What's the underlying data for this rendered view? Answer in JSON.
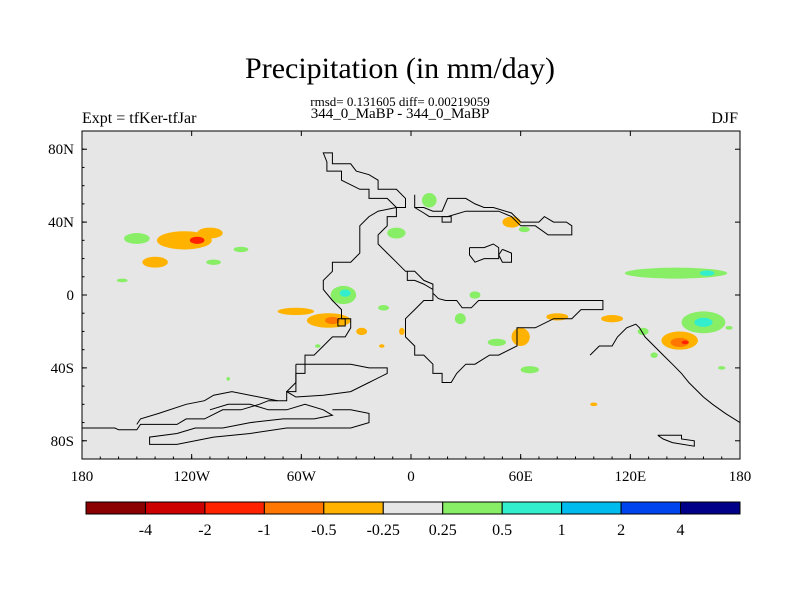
{
  "figure": {
    "title": "Precipitation (in mm/day)",
    "stats_line": "rmsd= 0.131605 diff= 0.00219059",
    "subtitle": "344_0_MaBP - 344_0_MaBP",
    "left_label": "Expt = tfKer-tfJar",
    "right_label": "DJF"
  },
  "chart_data": {
    "type": "heatmap",
    "title": "Precipitation (in mm/day)",
    "xlabel": "",
    "ylabel": "",
    "xlim": [
      -180,
      180
    ],
    "ylim": [
      -90,
      90
    ],
    "x_ticks": [
      {
        "value": -180,
        "label": "180"
      },
      {
        "value": -120,
        "label": "120W"
      },
      {
        "value": -60,
        "label": "60W"
      },
      {
        "value": 0,
        "label": "0"
      },
      {
        "value": 60,
        "label": "60E"
      },
      {
        "value": 120,
        "label": "120E"
      },
      {
        "value": 180,
        "label": "180"
      }
    ],
    "y_ticks": [
      {
        "value": 80,
        "label": "80N"
      },
      {
        "value": 40,
        "label": "40N"
      },
      {
        "value": 0,
        "label": "0"
      },
      {
        "value": -40,
        "label": "40S"
      },
      {
        "value": -80,
        "label": "80S"
      }
    ],
    "background_color": "#e6e6e6",
    "colorbar": {
      "levels": [
        "-4",
        "-2",
        "-1",
        "-0.5",
        "-0.25",
        "0.25",
        "0.5",
        "1",
        "2",
        "4"
      ],
      "colors": [
        "#8b0000",
        "#cc0000",
        "#ff2200",
        "#ff7700",
        "#ffb300",
        "#e6e6e6",
        "#88ee66",
        "#33eecc",
        "#00bbee",
        "#0044ee",
        "#000088"
      ]
    },
    "anomaly_regions": [
      {
        "lon": -150,
        "lat": 31,
        "rx": 7,
        "ry": 3,
        "color": "#88ee66"
      },
      {
        "lon": -124,
        "lat": 30,
        "rx": 15,
        "ry": 5,
        "color": "#ffb300"
      },
      {
        "lon": -110,
        "lat": 34,
        "rx": 7,
        "ry": 3,
        "color": "#ffb300"
      },
      {
        "lon": -117,
        "lat": 30,
        "rx": 4,
        "ry": 2,
        "color": "#ff2200"
      },
      {
        "lon": -140,
        "lat": 18,
        "rx": 7,
        "ry": 3,
        "color": "#ffb300"
      },
      {
        "lon": -108,
        "lat": 18,
        "rx": 4,
        "ry": 1.5,
        "color": "#88ee66"
      },
      {
        "lon": -158,
        "lat": 8,
        "rx": 3,
        "ry": 1,
        "color": "#88ee66"
      },
      {
        "lon": -93,
        "lat": 25,
        "rx": 4,
        "ry": 1.5,
        "color": "#88ee66"
      },
      {
        "lon": -37,
        "lat": 0,
        "rx": 7,
        "ry": 5,
        "color": "#88ee66"
      },
      {
        "lon": -36,
        "lat": 1,
        "rx": 3,
        "ry": 2,
        "color": "#33eecc"
      },
      {
        "lon": -63,
        "lat": -9,
        "rx": 10,
        "ry": 2,
        "color": "#ffb300"
      },
      {
        "lon": -45,
        "lat": -14,
        "rx": 12,
        "ry": 4,
        "color": "#ffb300"
      },
      {
        "lon": -43,
        "lat": -14,
        "rx": 4,
        "ry": 2,
        "color": "#ff7700"
      },
      {
        "lon": -27,
        "lat": -20,
        "rx": 3,
        "ry": 2,
        "color": "#ffb300"
      },
      {
        "lon": -15,
        "lat": -7,
        "rx": 3,
        "ry": 1.5,
        "color": "#88ee66"
      },
      {
        "lon": -5,
        "lat": -20,
        "rx": 1.5,
        "ry": 2,
        "color": "#ffb300"
      },
      {
        "lon": -16,
        "lat": -28,
        "rx": 1.5,
        "ry": 1,
        "color": "#ffb300"
      },
      {
        "lon": -51,
        "lat": -28,
        "rx": 1.5,
        "ry": 1,
        "color": "#88ee66"
      },
      {
        "lon": -100,
        "lat": -46,
        "rx": 1,
        "ry": 1,
        "color": "#88ee66"
      },
      {
        "lon": 10,
        "lat": 52,
        "rx": 4,
        "ry": 4,
        "color": "#88ee66"
      },
      {
        "lon": -8,
        "lat": 34,
        "rx": 5,
        "ry": 3,
        "color": "#88ee66"
      },
      {
        "lon": 55,
        "lat": 40,
        "rx": 5,
        "ry": 3,
        "color": "#ffb300"
      },
      {
        "lon": 62,
        "lat": 36,
        "rx": 3,
        "ry": 1.5,
        "color": "#88ee66"
      },
      {
        "lon": 35,
        "lat": 0,
        "rx": 3,
        "ry": 2,
        "color": "#88ee66"
      },
      {
        "lon": 27,
        "lat": -13,
        "rx": 3,
        "ry": 3,
        "color": "#88ee66"
      },
      {
        "lon": 60,
        "lat": -23,
        "rx": 5,
        "ry": 5,
        "color": "#ffb300"
      },
      {
        "lon": 47,
        "lat": -26,
        "rx": 5,
        "ry": 2,
        "color": "#88ee66"
      },
      {
        "lon": 65,
        "lat": -41,
        "rx": 5,
        "ry": 2,
        "color": "#88ee66"
      },
      {
        "lon": 80,
        "lat": -12,
        "rx": 6,
        "ry": 2,
        "color": "#ffb300"
      },
      {
        "lon": 110,
        "lat": -13,
        "rx": 6,
        "ry": 2,
        "color": "#ffb300"
      },
      {
        "lon": 100,
        "lat": -60,
        "rx": 2,
        "ry": 1,
        "color": "#ffb300"
      },
      {
        "lon": 145,
        "lat": 12,
        "rx": 28,
        "ry": 3,
        "color": "#88ee66"
      },
      {
        "lon": 162,
        "lat": 12,
        "rx": 4,
        "ry": 1.5,
        "color": "#33eecc"
      },
      {
        "lon": 160,
        "lat": -15,
        "rx": 12,
        "ry": 6,
        "color": "#88ee66"
      },
      {
        "lon": 160,
        "lat": -15,
        "rx": 5,
        "ry": 2.5,
        "color": "#33eecc"
      },
      {
        "lon": 147,
        "lat": -25,
        "rx": 10,
        "ry": 5,
        "color": "#ffb300"
      },
      {
        "lon": 147,
        "lat": -26,
        "rx": 5,
        "ry": 2.5,
        "color": "#ff7700"
      },
      {
        "lon": 150,
        "lat": -26,
        "rx": 2,
        "ry": 1,
        "color": "#ff2200"
      },
      {
        "lon": 127,
        "lat": -20,
        "rx": 3,
        "ry": 2,
        "color": "#88ee66"
      },
      {
        "lon": 133,
        "lat": -33,
        "rx": 2,
        "ry": 1.5,
        "color": "#88ee66"
      },
      {
        "lon": 170,
        "lat": -40,
        "rx": 2,
        "ry": 1,
        "color": "#88ee66"
      },
      {
        "lon": 174,
        "lat": -18,
        "rx": 2,
        "ry": 1,
        "color": "#88ee66"
      }
    ],
    "coastlines": [
      [
        [
          -180,
          -73
        ],
        [
          -162,
          -73
        ],
        [
          -160,
          -74
        ],
        [
          -150,
          -74
        ],
        [
          -148,
          -71
        ],
        [
          -128,
          -71
        ],
        [
          -123,
          -68
        ],
        [
          -113,
          -68
        ],
        [
          -103,
          -63
        ],
        [
          -93,
          -63
        ],
        [
          -83,
          -60
        ],
        [
          -78,
          -58
        ],
        [
          -68,
          -58
        ],
        [
          -68,
          -53
        ],
        [
          -63,
          -53
        ],
        [
          -63,
          -43
        ],
        [
          -58,
          -43
        ],
        [
          -58,
          -33
        ],
        [
          -53,
          -33
        ],
        [
          -48,
          -28
        ],
        [
          -43,
          -23
        ],
        [
          -36,
          -23
        ],
        [
          -33,
          -18
        ],
        [
          -33,
          -13
        ],
        [
          -38,
          -13
        ],
        [
          -38,
          -8
        ],
        [
          -43,
          -3
        ],
        [
          -48,
          3
        ],
        [
          -48,
          8
        ],
        [
          -43,
          13
        ],
        [
          -43,
          18
        ],
        [
          -33,
          18
        ],
        [
          -28,
          23
        ],
        [
          -28,
          38
        ],
        [
          -23,
          43
        ],
        [
          -18,
          46
        ],
        [
          -8,
          48
        ],
        [
          -8,
          43
        ],
        [
          -13,
          43
        ],
        [
          -13,
          38
        ],
        [
          -18,
          33
        ],
        [
          -18,
          28
        ],
        [
          -13,
          23
        ],
        [
          -8,
          18
        ],
        [
          -3,
          13
        ],
        [
          2,
          13
        ],
        [
          7,
          8
        ],
        [
          12,
          6
        ],
        [
          12,
          1
        ],
        [
          15,
          -2
        ],
        [
          19,
          -3
        ],
        [
          25,
          -3
        ],
        [
          28,
          -7
        ],
        [
          33,
          -7
        ],
        [
          37,
          -3
        ],
        [
          43,
          -3
        ],
        [
          50,
          -3
        ],
        [
          60,
          -3
        ],
        [
          70,
          -3
        ],
        [
          80,
          -3
        ],
        [
          95,
          -3
        ],
        [
          105,
          -3
        ],
        [
          105,
          -8
        ],
        [
          93,
          -8
        ],
        [
          88,
          -13
        ],
        [
          78,
          -13
        ],
        [
          68,
          -18
        ],
        [
          58,
          -18
        ],
        [
          58,
          -28
        ],
        [
          48,
          -33
        ],
        [
          43,
          -33
        ],
        [
          35,
          -38
        ],
        [
          30,
          -38
        ],
        [
          25,
          -43
        ],
        [
          22,
          -48
        ],
        [
          17,
          -48
        ],
        [
          17,
          -43
        ],
        [
          12,
          -43
        ],
        [
          12,
          -38
        ],
        [
          7,
          -33
        ],
        [
          2,
          -33
        ],
        [
          2,
          -28
        ],
        [
          -3,
          -23
        ],
        [
          -3,
          -13
        ],
        [
          2,
          -8
        ],
        [
          7,
          -3
        ],
        [
          12,
          -3
        ],
        [
          12,
          3
        ],
        [
          7,
          6
        ],
        [
          2,
          8
        ],
        [
          -2,
          8
        ],
        [
          -2,
          13
        ]
      ],
      [
        [
          -8,
          48
        ],
        [
          -13,
          53
        ],
        [
          -23,
          53
        ],
        [
          -23,
          58
        ],
        [
          -28,
          58
        ],
        [
          -38,
          63
        ],
        [
          -38,
          68
        ],
        [
          -46,
          68
        ],
        [
          -46,
          73
        ],
        [
          -48,
          78
        ],
        [
          -43,
          78
        ],
        [
          -43,
          72
        ],
        [
          -33,
          72
        ],
        [
          -30,
          68
        ],
        [
          -23,
          66
        ],
        [
          -18,
          63
        ],
        [
          -18,
          58
        ],
        [
          -8,
          58
        ],
        [
          -3,
          53
        ],
        [
          -3,
          48
        ],
        [
          -8,
          48
        ]
      ],
      [
        [
          2,
          55
        ],
        [
          2,
          48
        ],
        [
          7,
          48
        ],
        [
          12,
          46
        ],
        [
          17,
          46
        ],
        [
          20,
          53
        ],
        [
          30,
          53
        ],
        [
          35,
          50
        ],
        [
          40,
          48
        ],
        [
          45,
          48
        ],
        [
          55,
          45
        ],
        [
          60,
          40
        ],
        [
          70,
          40
        ],
        [
          73,
          43
        ],
        [
          78,
          40
        ],
        [
          85,
          40
        ],
        [
          88,
          38
        ],
        [
          88,
          33
        ],
        [
          82,
          33
        ],
        [
          75,
          33
        ],
        [
          68,
          38
        ],
        [
          60,
          38
        ],
        [
          55,
          43
        ],
        [
          48,
          46
        ],
        [
          40,
          46
        ],
        [
          30,
          46
        ],
        [
          20,
          43
        ],
        [
          15,
          43
        ],
        [
          10,
          43
        ],
        [
          7,
          45
        ],
        [
          2,
          48
        ]
      ],
      [
        [
          32,
          26
        ],
        [
          40,
          26
        ],
        [
          45,
          28
        ],
        [
          48,
          26
        ],
        [
          48,
          20
        ],
        [
          40,
          20
        ],
        [
          35,
          18
        ],
        [
          32,
          22
        ],
        [
          32,
          26
        ]
      ],
      [
        [
          98,
          -33
        ],
        [
          103,
          -28
        ],
        [
          110,
          -28
        ],
        [
          113,
          -23
        ],
        [
          118,
          -18
        ],
        [
          123,
          -16
        ],
        [
          125,
          -18
        ],
        [
          128,
          -23
        ],
        [
          133,
          -28
        ],
        [
          138,
          -33
        ],
        [
          143,
          -38
        ],
        [
          148,
          -43
        ],
        [
          152,
          -48
        ],
        [
          157,
          -53
        ],
        [
          160,
          -56
        ],
        [
          165,
          -60
        ],
        [
          172,
          -65
        ],
        [
          180,
          -70
        ]
      ],
      [
        [
          -73,
          -58
        ],
        [
          -98,
          -53
        ],
        [
          -108,
          -55
        ],
        [
          -113,
          -58
        ],
        [
          -123,
          -60
        ],
        [
          -138,
          -65
        ],
        [
          -148,
          -68
        ],
        [
          -150,
          -71
        ]
      ],
      [
        [
          -110,
          -63
        ],
        [
          -100,
          -60
        ],
        [
          -88,
          -60
        ],
        [
          -78,
          -63
        ],
        [
          -68,
          -63
        ],
        [
          -58,
          -60
        ],
        [
          -48,
          -63
        ],
        [
          -43,
          -66
        ],
        [
          -53,
          -68
        ],
        [
          -70,
          -68
        ],
        [
          -88,
          -70
        ],
        [
          -103,
          -73
        ],
        [
          -118,
          -73
        ],
        [
          -128,
          -76
        ],
        [
          -143,
          -78
        ],
        [
          -143,
          -82
        ],
        [
          -128,
          -82
        ],
        [
          -108,
          -78
        ],
        [
          -88,
          -76
        ],
        [
          -68,
          -73
        ],
        [
          -53,
          -73
        ],
        [
          -33,
          -73
        ],
        [
          -23,
          -70
        ],
        [
          -23,
          -65
        ],
        [
          -33,
          -63
        ],
        [
          -43,
          -63
        ]
      ],
      [
        [
          -63,
          -38
        ],
        [
          -33,
          -38
        ],
        [
          -23,
          -40
        ],
        [
          -13,
          -40
        ],
        [
          -13,
          -43
        ],
        [
          -23,
          -48
        ],
        [
          -33,
          -53
        ],
        [
          -48,
          -55
        ],
        [
          -63,
          -56
        ],
        [
          -68,
          -53
        ],
        [
          -63,
          -48
        ],
        [
          -63,
          -38
        ]
      ],
      [
        [
          135,
          -77
        ],
        [
          148,
          -77
        ],
        [
          148,
          -79
        ],
        [
          155,
          -80
        ],
        [
          155,
          -83
        ],
        [
          143,
          -81
        ],
        [
          138,
          -79
        ],
        [
          135,
          -77
        ]
      ],
      [
        [
          -40,
          -13
        ],
        [
          -36,
          -13
        ],
        [
          -36,
          -17
        ],
        [
          -40,
          -17
        ],
        [
          -40,
          -13
        ]
      ],
      [
        [
          50,
          25
        ],
        [
          55,
          23
        ],
        [
          55,
          18
        ],
        [
          50,
          18
        ],
        [
          48,
          22
        ],
        [
          50,
          25
        ]
      ],
      [
        [
          17,
          43
        ],
        [
          17,
          40
        ],
        [
          22,
          40
        ],
        [
          22,
          43
        ],
        [
          17,
          43
        ]
      ]
    ]
  }
}
